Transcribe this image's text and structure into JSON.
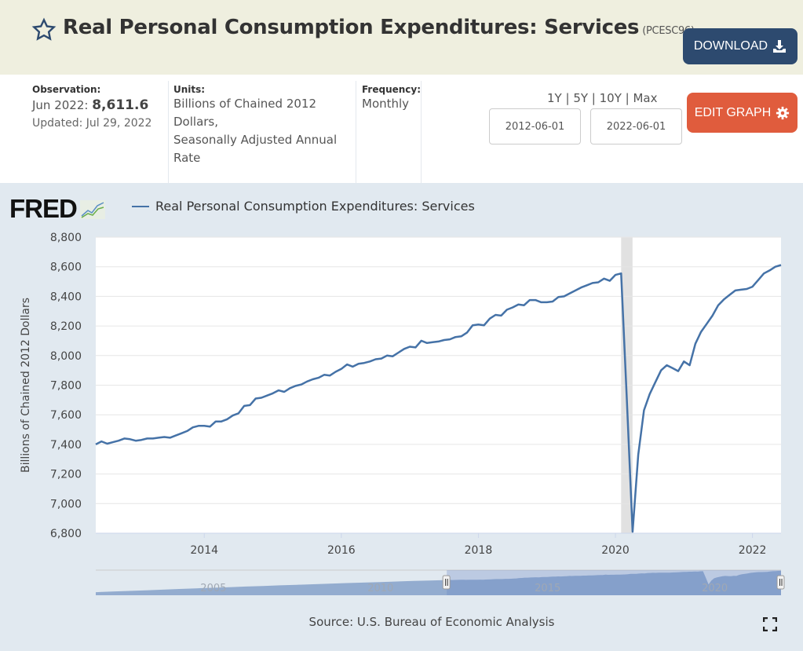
{
  "header": {
    "title": "Real Personal Consumption Expenditures: Services",
    "series_code": "(PCESC96)",
    "download_label": "DOWNLOAD"
  },
  "info": {
    "observation_label": "Observation:",
    "observation_date": "Jun 2022:",
    "observation_value": "8,611.6",
    "updated": "Updated: Jul 29, 2022",
    "units_label": "Units:",
    "units_lines": [
      "Billions of Chained 2012",
      "Dollars,",
      "Seasonally Adjusted Annual",
      "Rate"
    ],
    "frequency_label": "Frequency:",
    "frequency_value": "Monthly",
    "ranges": [
      "1Y",
      "5Y",
      "10Y",
      "Max"
    ],
    "start_date": "2012-06-01",
    "end_date": "2022-06-01",
    "edit_label": "EDIT GRAPH"
  },
  "chart": {
    "logo": "FRED",
    "legend": "Real Personal Consumption Expenditures: Services",
    "source": "Source: U.S. Bureau of Economic Analysis",
    "navigator_labels": [
      "2005",
      "2010",
      "2015",
      "2020"
    ]
  },
  "colors": {
    "series": "#4572a7",
    "recession": "#e1e1e1",
    "download": "#2d4a6f",
    "edit": "#e05c3d",
    "panel": "#e1e9f0"
  },
  "chart_data": {
    "type": "line",
    "title": "",
    "xlabel": "",
    "ylabel": "Billions of Chained 2012 Dollars",
    "ylim": [
      6800,
      8800
    ],
    "yticks": [
      "6,800",
      "7,000",
      "7,200",
      "7,400",
      "7,600",
      "7,800",
      "8,000",
      "8,200",
      "8,400",
      "8,600",
      "8,800"
    ],
    "xticks": [
      "2014",
      "2016",
      "2018",
      "2020",
      "2022"
    ],
    "xrange": [
      "2012-06",
      "2022-06"
    ],
    "grid": true,
    "recession_shading": [
      "2020-02",
      "2020-04"
    ],
    "start": "2012-06",
    "frequency": "monthly",
    "series": [
      {
        "name": "Real Personal Consumption Expenditures: Services",
        "values": [
          7400,
          7420,
          7405,
          7415,
          7425,
          7440,
          7435,
          7425,
          7430,
          7440,
          7440,
          7445,
          7450,
          7445,
          7460,
          7475,
          7490,
          7515,
          7525,
          7525,
          7520,
          7555,
          7555,
          7570,
          7595,
          7610,
          7660,
          7665,
          7710,
          7715,
          7730,
          7745,
          7765,
          7755,
          7780,
          7795,
          7805,
          7825,
          7840,
          7850,
          7870,
          7865,
          7890,
          7910,
          7940,
          7925,
          7945,
          7950,
          7960,
          7975,
          7980,
          8000,
          7995,
          8020,
          8045,
          8060,
          8055,
          8100,
          8085,
          8090,
          8095,
          8105,
          8110,
          8125,
          8130,
          8155,
          8205,
          8210,
          8205,
          8250,
          8275,
          8270,
          8310,
          8325,
          8345,
          8340,
          8375,
          8375,
          8360,
          8360,
          8365,
          8395,
          8400,
          8420,
          8440,
          8460,
          8475,
          8490,
          8495,
          8520,
          8505,
          8545,
          8555,
          7700,
          6810,
          7330,
          7630,
          7740,
          7820,
          7900,
          7935,
          7915,
          7895,
          7960,
          7935,
          8080,
          8160,
          8215,
          8270,
          8340,
          8380,
          8410,
          8440,
          8445,
          8450,
          8465,
          8510,
          8555,
          8575,
          8600,
          8611.6
        ]
      }
    ]
  }
}
